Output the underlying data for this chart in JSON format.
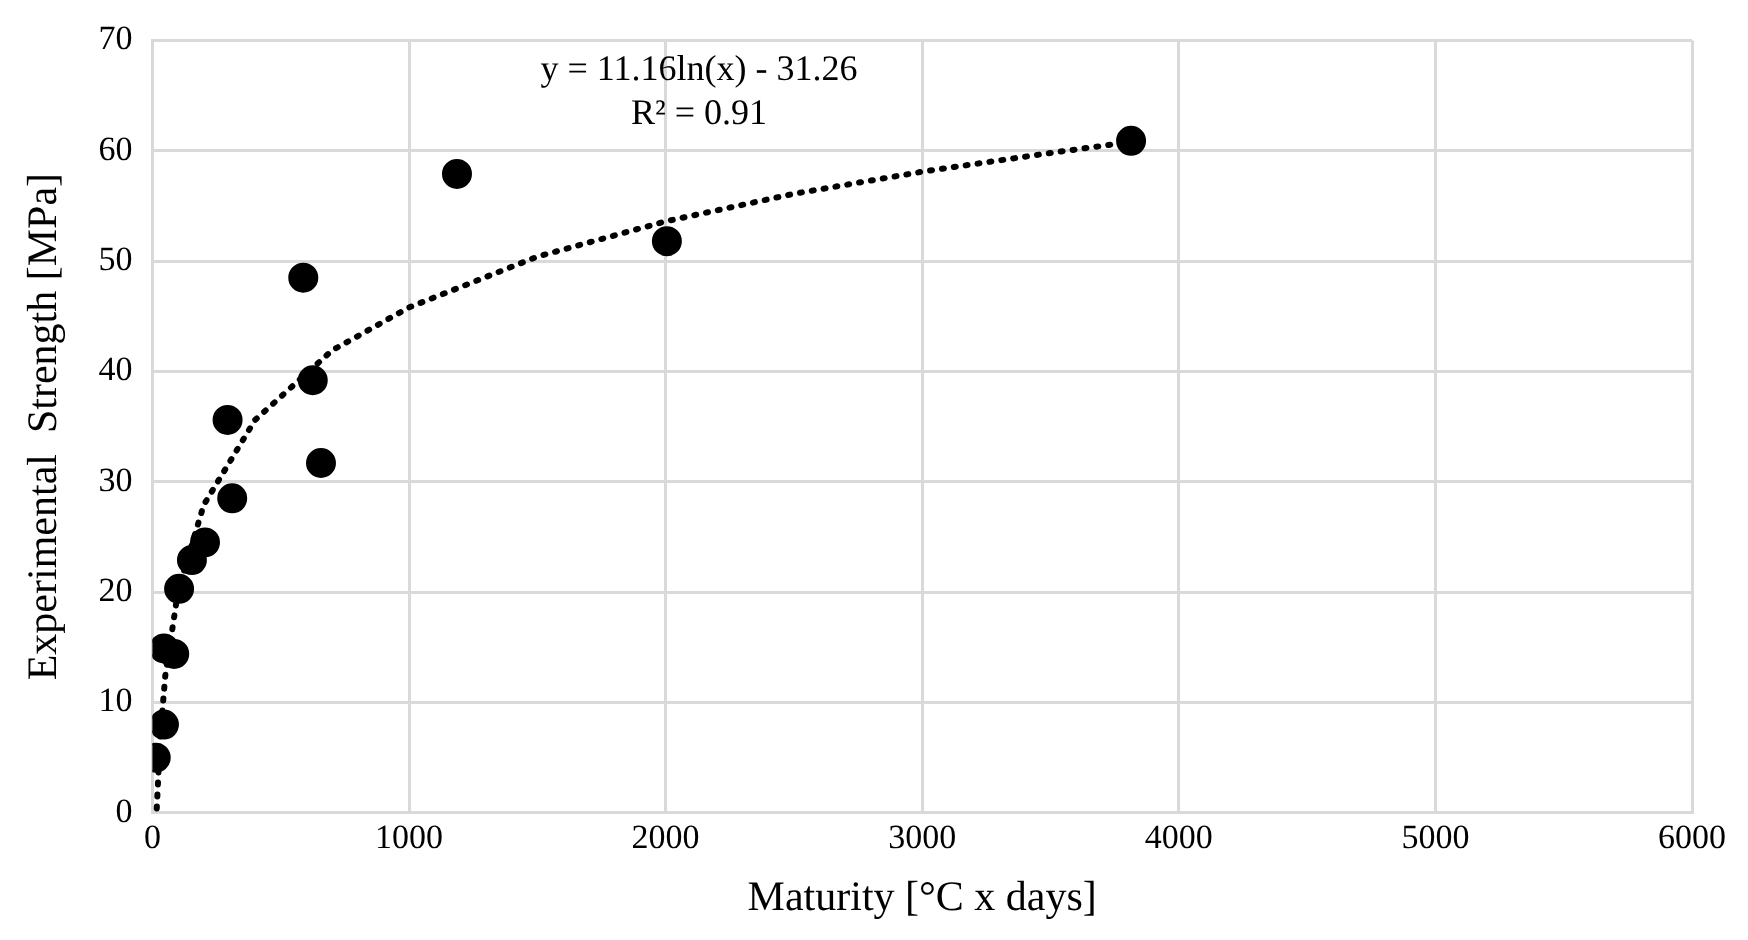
{
  "chart_data": {
    "type": "scatter",
    "xlabel": "Maturity [°C x days]",
    "ylabel": "Experimental  Strength [MPa]",
    "annotations": [
      "y = 11.16ln(x) - 31.26",
      "R² = 0.91"
    ],
    "series": [
      {
        "type": "scatter",
        "color": "#000000",
        "marker": "circle",
        "x": [
          13,
          45,
          45,
          85,
          104,
          154,
          205,
          293,
          311,
          588,
          625,
          657,
          1187,
          2005,
          3814
        ],
        "values": [
          5.0,
          8.0,
          14.9,
          14.4,
          20.3,
          22.9,
          24.5,
          35.6,
          28.5,
          48.5,
          39.2,
          31.7,
          57.9,
          51.8,
          60.9
        ]
      },
      {
        "type": "line",
        "color": "#000000",
        "marker": "none",
        "line_style": "dotted",
        "x": [
          17,
          30,
          50,
          100,
          200,
          400,
          700,
          1000,
          1500,
          2000,
          2500,
          3000,
          3500,
          3814
        ],
        "values": [
          0.4,
          6.7,
          12.4,
          20.1,
          27.9,
          35.6,
          41.9,
          45.8,
          50.4,
          53.6,
          56.1,
          58.1,
          59.8,
          60.8
        ]
      }
    ],
    "xlim": [
      0,
      6000
    ],
    "xticks": [
      0,
      1000,
      2000,
      3000,
      4000,
      5000,
      6000
    ],
    "ylim": [
      0,
      70
    ],
    "yticks": [
      0,
      10,
      20,
      30,
      40,
      50,
      60,
      70
    ],
    "grid": true,
    "legend": false
  }
}
